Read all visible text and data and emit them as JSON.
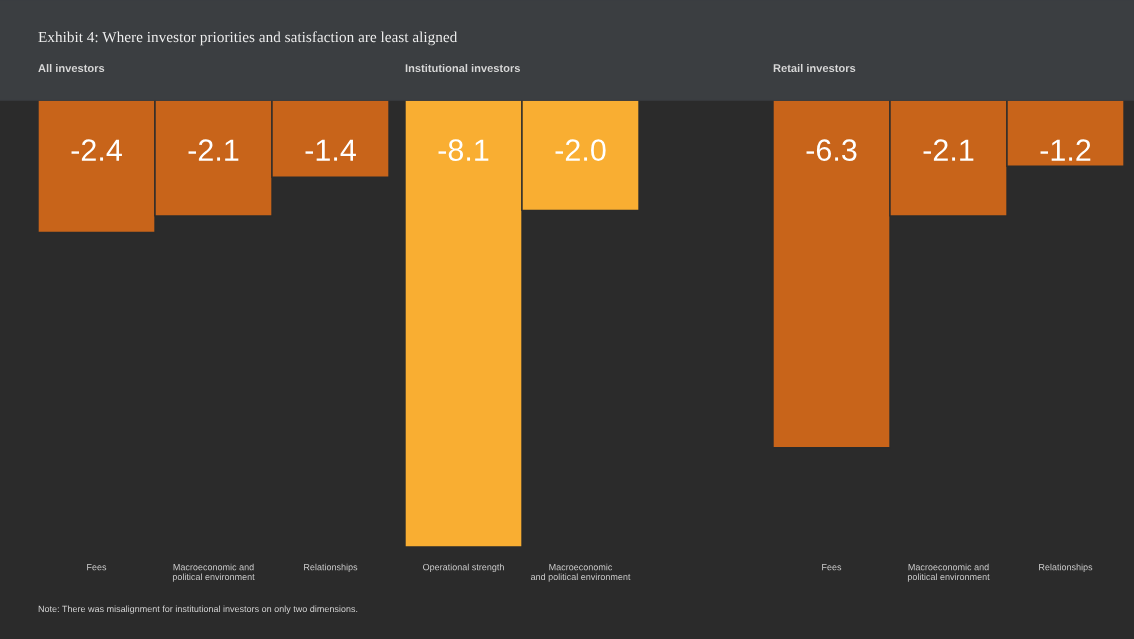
{
  "chart_data": [
    {
      "type": "bar",
      "title": "Exhibit 4: Where investor priorities and satisfaction are least aligned",
      "subtitle": "All investors",
      "categories": [
        "Fees",
        "Macroeconomic and\npolitical environment",
        "Relationships"
      ],
      "values": [
        -2.4,
        -2.1,
        -1.4
      ],
      "value_labels": [
        "-2.4",
        "-2.1",
        "-1.4"
      ],
      "colors": [
        "#c8641a",
        "#c8641a",
        "#c8641a"
      ],
      "annotations": [
        "Note: There was misalignment for institutional investors on only two dimensions."
      ]
    },
    {
      "type": "bar",
      "subtitle": "Institutional investors",
      "categories": [
        "Operational strength",
        "Macroeconomic\nand political environment"
      ],
      "values": [
        -8.1,
        -2.0
      ],
      "value_labels": [
        "-8.1",
        "-2.0"
      ],
      "colors": [
        "#f9ae32",
        "#f9ae32"
      ]
    },
    {
      "type": "bar",
      "subtitle": "Retail investors",
      "categories": [
        "Fees",
        "Macroeconomic and\npolitical environment",
        "Relationships"
      ],
      "values": [
        -6.3,
        -2.1,
        -1.2
      ],
      "value_labels": [
        "-6.3",
        "-2.1",
        "-1.2"
      ],
      "colors": [
        "#c8641a",
        "#c8641a",
        "#c8641a"
      ]
    }
  ]
}
